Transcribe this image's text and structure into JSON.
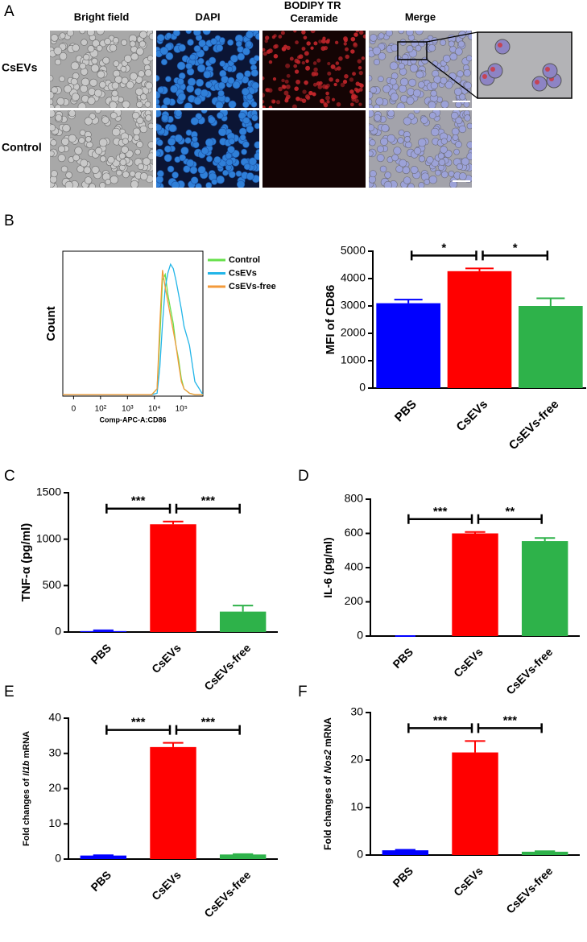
{
  "panel_labels": [
    "A",
    "B",
    "C",
    "D",
    "E",
    "F"
  ],
  "image_grid": {
    "columns": [
      "Bright field",
      "DAPI",
      "BODIPY TR Ceramide",
      "Merge"
    ],
    "rows": [
      "CsEVs",
      "Control"
    ]
  },
  "chart_data": [
    {
      "type": "line",
      "xlabel": "Comp-APC-A:CD86",
      "ylabel": "Count",
      "x": [
        0.6,
        1,
        2,
        3,
        3.9,
        4.1,
        4.2,
        4.3,
        4.4,
        4.5,
        4.6,
        4.7,
        4.8,
        4.9,
        5.0,
        5.1,
        5.3,
        5.5,
        5.8
      ],
      "xlim": [
        0.6,
        5.8
      ],
      "xticks": [
        {
          "value": 1,
          "label": "0"
        },
        {
          "value": 2,
          "label": "10²"
        },
        {
          "value": 3,
          "label": "10³"
        },
        {
          "value": 4,
          "label": "10⁴"
        },
        {
          "value": 5,
          "label": "10⁵"
        }
      ],
      "ylim": [
        0,
        100
      ],
      "legend": "right",
      "series": [
        {
          "name": "Control",
          "color": "#66e04a",
          "values": [
            1,
            1,
            1,
            1,
            1,
            5,
            40,
            80,
            84,
            70,
            60,
            50,
            35,
            25,
            12,
            5,
            2,
            1,
            1
          ]
        },
        {
          "name": "CsEVs",
          "color": "#22b5e8",
          "values": [
            1,
            1,
            1,
            1,
            1,
            2,
            20,
            50,
            75,
            85,
            91,
            88,
            80,
            70,
            60,
            48,
            35,
            10,
            1
          ]
        },
        {
          "name": "CsEVs-free",
          "color": "#f39a3a",
          "values": [
            1,
            1,
            1,
            1,
            1,
            5,
            50,
            87,
            75,
            65,
            55,
            45,
            35,
            22,
            10,
            5,
            2,
            1,
            1
          ]
        }
      ]
    },
    {
      "type": "bar",
      "ylabel": [
        "MFI of CD86"
      ],
      "categories": [
        "PBS",
        "CsEVs",
        "CsEVs-free"
      ],
      "values": [
        3100,
        4270,
        3000
      ],
      "errors": [
        130,
        100,
        280
      ],
      "colors": [
        "#0000ff",
        "#ff0000",
        "#2eb24a"
      ],
      "ylim": [
        0,
        5000
      ],
      "yticks": [
        0,
        1000,
        2000,
        3000,
        4000,
        5000
      ],
      "significance": [
        {
          "groups": [
            0,
            1
          ],
          "label": "*"
        },
        {
          "groups": [
            1,
            2
          ],
          "label": "*"
        }
      ]
    },
    {
      "type": "bar",
      "ylabel": [
        "TNF-α (pg/ml)"
      ],
      "categories": [
        "PBS",
        "CsEVs",
        "CsEVs-free"
      ],
      "values": [
        10,
        1160,
        220
      ],
      "errors": [
        8,
        30,
        65
      ],
      "colors": [
        "#0000ff",
        "#ff0000",
        "#2eb24a"
      ],
      "ylim": [
        0,
        1500
      ],
      "yticks": [
        0,
        500,
        1000,
        1500
      ],
      "significance": [
        {
          "groups": [
            0,
            1
          ],
          "label": "***"
        },
        {
          "groups": [
            1,
            2
          ],
          "label": "***"
        }
      ]
    },
    {
      "type": "bar",
      "ylabel": [
        "IL-6 (pg/ml)"
      ],
      "categories": [
        "PBS",
        "CsEVs",
        "CsEVs-free"
      ],
      "values": [
        0,
        600,
        555
      ],
      "errors": [
        0,
        8,
        18
      ],
      "colors": [
        "#0000ff",
        "#ff0000",
        "#2eb24a"
      ],
      "ylim": [
        0,
        800
      ],
      "yticks": [
        0,
        200,
        400,
        600,
        800
      ],
      "significance": [
        {
          "groups": [
            0,
            1
          ],
          "label": "***"
        },
        {
          "groups": [
            1,
            2
          ],
          "label": "**"
        }
      ]
    },
    {
      "type": "bar",
      "ylabel": [
        "Fold changes of ",
        "Il1b",
        " mRNA"
      ],
      "categories": [
        "PBS",
        "CsEVs",
        "CsEVs-free"
      ],
      "values": [
        1,
        31.8,
        1.3
      ],
      "errors": [
        0.1,
        1.2,
        0.1
      ],
      "colors": [
        "#0000ff",
        "#ff0000",
        "#2eb24a"
      ],
      "ylim": [
        0,
        40
      ],
      "yticks": [
        0,
        10,
        20,
        30,
        40
      ],
      "significance": [
        {
          "groups": [
            0,
            1
          ],
          "label": "***"
        },
        {
          "groups": [
            1,
            2
          ],
          "label": "***"
        }
      ]
    },
    {
      "type": "bar",
      "ylabel": [
        "Fold changes of ",
        "Nos2",
        " mRNA"
      ],
      "categories": [
        "PBS",
        "CsEVs",
        "CsEVs-free"
      ],
      "values": [
        1,
        21.6,
        0.7
      ],
      "errors": [
        0.1,
        2.4,
        0.1
      ],
      "colors": [
        "#0000ff",
        "#ff0000",
        "#2eb24a"
      ],
      "ylim": [
        0,
        30
      ],
      "yticks": [
        0,
        10,
        20,
        30
      ],
      "significance": [
        {
          "groups": [
            0,
            1
          ],
          "label": "***"
        },
        {
          "groups": [
            1,
            2
          ],
          "label": "***"
        }
      ]
    }
  ]
}
